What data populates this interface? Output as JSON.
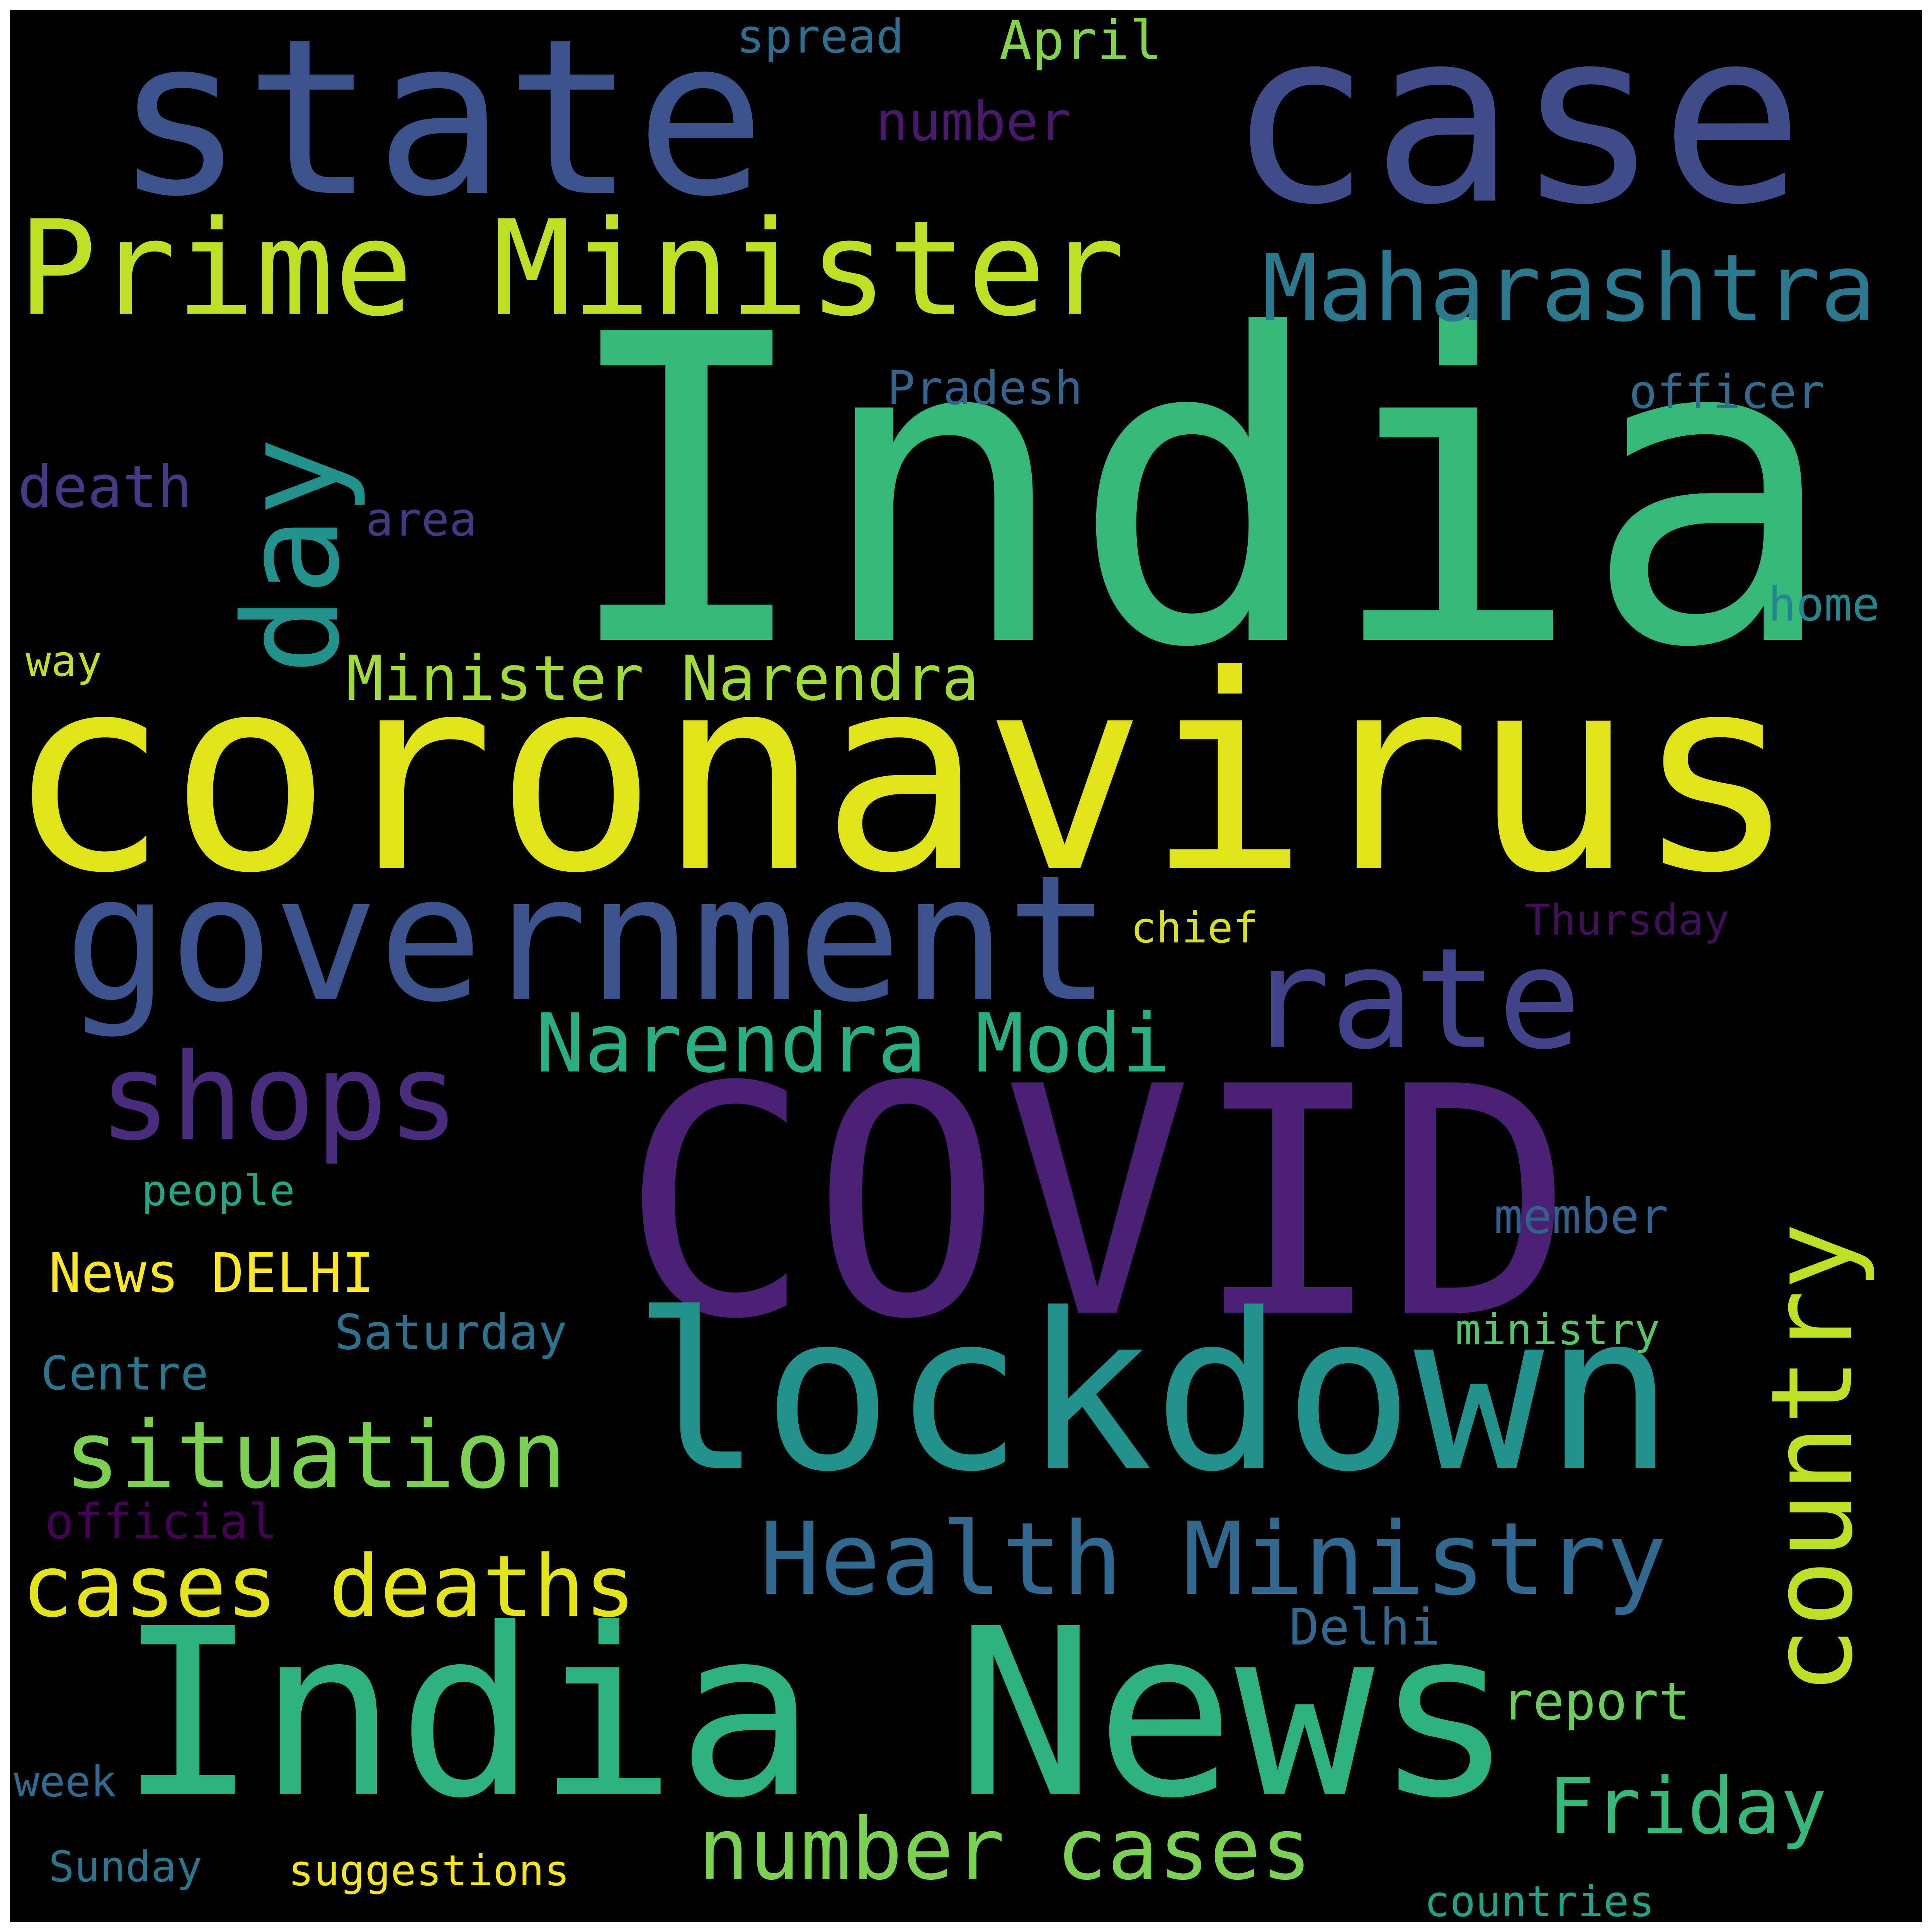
{
  "colors": {
    "background": "#000000",
    "frame": "#ffffff",
    "palette": [
      "#440154",
      "#482878",
      "#3e4989",
      "#31688e",
      "#26828e",
      "#1f9e89",
      "#35b779",
      "#6ece58",
      "#b5de2b",
      "#fde725"
    ]
  },
  "words": [
    {
      "text": "India",
      "color": "#35b779"
    },
    {
      "text": "coronavirus",
      "color": "#dfe318"
    },
    {
      "text": "COVID",
      "color": "#482173"
    },
    {
      "text": "case",
      "color": "#3e4c8a"
    },
    {
      "text": "state",
      "color": "#3b528b"
    },
    {
      "text": "India News",
      "color": "#2db27d"
    },
    {
      "text": "lockdown",
      "color": "#21918c"
    },
    {
      "text": "government",
      "color": "#3b528b"
    },
    {
      "text": "Prime Minister",
      "color": "#bddf26"
    },
    {
      "text": "day",
      "color": "#21918c"
    },
    {
      "text": "rate",
      "color": "#404387"
    },
    {
      "text": "country",
      "color": "#bddf26"
    },
    {
      "text": "shops",
      "color": "#472d7b"
    },
    {
      "text": "Maharashtra",
      "color": "#2a788e"
    },
    {
      "text": "Health Ministry",
      "color": "#31688e"
    },
    {
      "text": "Narendra Modi",
      "color": "#28ae80"
    },
    {
      "text": "situation",
      "color": "#7ad151"
    },
    {
      "text": "number cases",
      "color": "#7ad151"
    },
    {
      "text": "cases deaths",
      "color": "#e5e419"
    },
    {
      "text": "Minister Narendra",
      "color": "#a2da37"
    },
    {
      "text": "Friday",
      "color": "#35b779"
    },
    {
      "text": "News DELHI",
      "color": "#fde725"
    },
    {
      "text": "Delhi",
      "color": "#31688e"
    },
    {
      "text": "report",
      "color": "#6ccd5a"
    },
    {
      "text": "member",
      "color": "#355f8d"
    },
    {
      "text": "Saturday",
      "color": "#2c728e"
    },
    {
      "text": "Centre",
      "color": "#2a768e"
    },
    {
      "text": "official",
      "color": "#440154"
    },
    {
      "text": "people",
      "color": "#22a884"
    },
    {
      "text": "ministry",
      "color": "#52c569"
    },
    {
      "text": "chief",
      "color": "#d8e219"
    },
    {
      "text": "Thursday",
      "color": "#3f0f58"
    },
    {
      "text": "officer",
      "color": "#2f6c8e"
    },
    {
      "text": "Pradesh",
      "color": "#33638d"
    },
    {
      "text": "death",
      "color": "#443a83"
    },
    {
      "text": "area",
      "color": "#453781"
    },
    {
      "text": "home",
      "color": "#25858e"
    },
    {
      "text": "way",
      "color": "#c0df25"
    },
    {
      "text": "number",
      "color": "#48186a"
    },
    {
      "text": "spread",
      "color": "#2e6e8e"
    },
    {
      "text": "April",
      "color": "#84d44b"
    },
    {
      "text": "week",
      "color": "#306a8e"
    },
    {
      "text": "Sunday",
      "color": "#2b758e"
    },
    {
      "text": "suggestions",
      "color": "#f6e620"
    },
    {
      "text": "countries",
      "color": "#1fa287"
    }
  ]
}
